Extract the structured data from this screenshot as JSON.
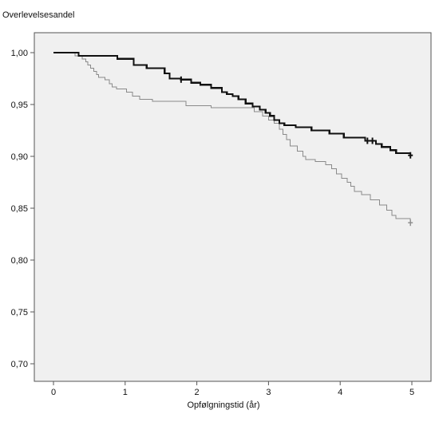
{
  "chart_data": {
    "type": "line",
    "subtype": "kaplan-meier step curve",
    "title": "",
    "xlabel": "Opfølgningstid (år)",
    "ylabel": "Overlevelsesandel",
    "xlim": [
      0,
      5
    ],
    "ylim": [
      0.68,
      1.02
    ],
    "x_ticks": [
      0,
      1,
      2,
      3,
      4,
      5
    ],
    "x_tick_labels": [
      "0",
      "1",
      "2",
      "3",
      "4",
      "5"
    ],
    "y_ticks": [
      0.7,
      0.75,
      0.8,
      0.85,
      0.9,
      0.95,
      1.0
    ],
    "y_tick_labels": [
      "0,70",
      "0,75",
      "0,80",
      "0,85",
      "0,90",
      "0,95",
      "1,00"
    ],
    "grid": false,
    "background": "#f0f0f0",
    "series": [
      {
        "color": "#111111",
        "width": "thick",
        "points": [
          [
            0.0,
            1.0
          ],
          [
            0.35,
            0.997
          ],
          [
            0.89,
            0.994
          ],
          [
            1.12,
            0.988
          ],
          [
            1.3,
            0.985
          ],
          [
            1.55,
            0.98
          ],
          [
            1.62,
            0.975
          ],
          [
            1.78,
            0.974
          ],
          [
            1.92,
            0.971
          ],
          [
            2.05,
            0.969
          ],
          [
            2.2,
            0.966
          ],
          [
            2.35,
            0.962
          ],
          [
            2.42,
            0.96
          ],
          [
            2.5,
            0.958
          ],
          [
            2.58,
            0.955
          ],
          [
            2.68,
            0.951
          ],
          [
            2.78,
            0.948
          ],
          [
            2.88,
            0.945
          ],
          [
            2.96,
            0.942
          ],
          [
            3.02,
            0.939
          ],
          [
            3.08,
            0.935
          ],
          [
            3.15,
            0.932
          ],
          [
            3.22,
            0.93
          ],
          [
            3.38,
            0.928
          ],
          [
            3.6,
            0.925
          ],
          [
            3.85,
            0.922
          ],
          [
            4.05,
            0.918
          ],
          [
            4.35,
            0.915
          ],
          [
            4.5,
            0.912
          ],
          [
            4.58,
            0.909
          ],
          [
            4.7,
            0.906
          ],
          [
            4.78,
            0.903
          ],
          [
            4.98,
            0.903
          ]
        ],
        "censored": [
          [
            1.78,
            0.974
          ],
          [
            4.38,
            0.915
          ],
          [
            4.45,
            0.915
          ],
          [
            4.98,
            0.901
          ]
        ]
      },
      {
        "color": "#8a8a8a",
        "width": "thin",
        "points": [
          [
            0.0,
            1.0
          ],
          [
            0.3,
            0.997
          ],
          [
            0.4,
            0.994
          ],
          [
            0.45,
            0.991
          ],
          [
            0.48,
            0.988
          ],
          [
            0.52,
            0.985
          ],
          [
            0.56,
            0.982
          ],
          [
            0.6,
            0.979
          ],
          [
            0.63,
            0.976
          ],
          [
            0.72,
            0.974
          ],
          [
            0.78,
            0.97
          ],
          [
            0.82,
            0.967
          ],
          [
            0.88,
            0.965
          ],
          [
            1.02,
            0.962
          ],
          [
            1.1,
            0.958
          ],
          [
            1.2,
            0.955
          ],
          [
            1.38,
            0.953
          ],
          [
            1.85,
            0.949
          ],
          [
            2.2,
            0.947
          ],
          [
            2.8,
            0.943
          ],
          [
            2.92,
            0.939
          ],
          [
            3.0,
            0.935
          ],
          [
            3.08,
            0.932
          ],
          [
            3.15,
            0.926
          ],
          [
            3.2,
            0.921
          ],
          [
            3.25,
            0.916
          ],
          [
            3.3,
            0.91
          ],
          [
            3.4,
            0.905
          ],
          [
            3.48,
            0.9
          ],
          [
            3.52,
            0.897
          ],
          [
            3.65,
            0.895
          ],
          [
            3.8,
            0.892
          ],
          [
            3.88,
            0.888
          ],
          [
            3.95,
            0.883
          ],
          [
            4.02,
            0.879
          ],
          [
            4.1,
            0.875
          ],
          [
            4.15,
            0.871
          ],
          [
            4.2,
            0.866
          ],
          [
            4.3,
            0.863
          ],
          [
            4.42,
            0.858
          ],
          [
            4.55,
            0.853
          ],
          [
            4.65,
            0.848
          ],
          [
            4.72,
            0.843
          ],
          [
            4.78,
            0.84
          ],
          [
            4.98,
            0.838
          ]
        ],
        "censored": [
          [
            4.98,
            0.836
          ]
        ]
      }
    ]
  }
}
